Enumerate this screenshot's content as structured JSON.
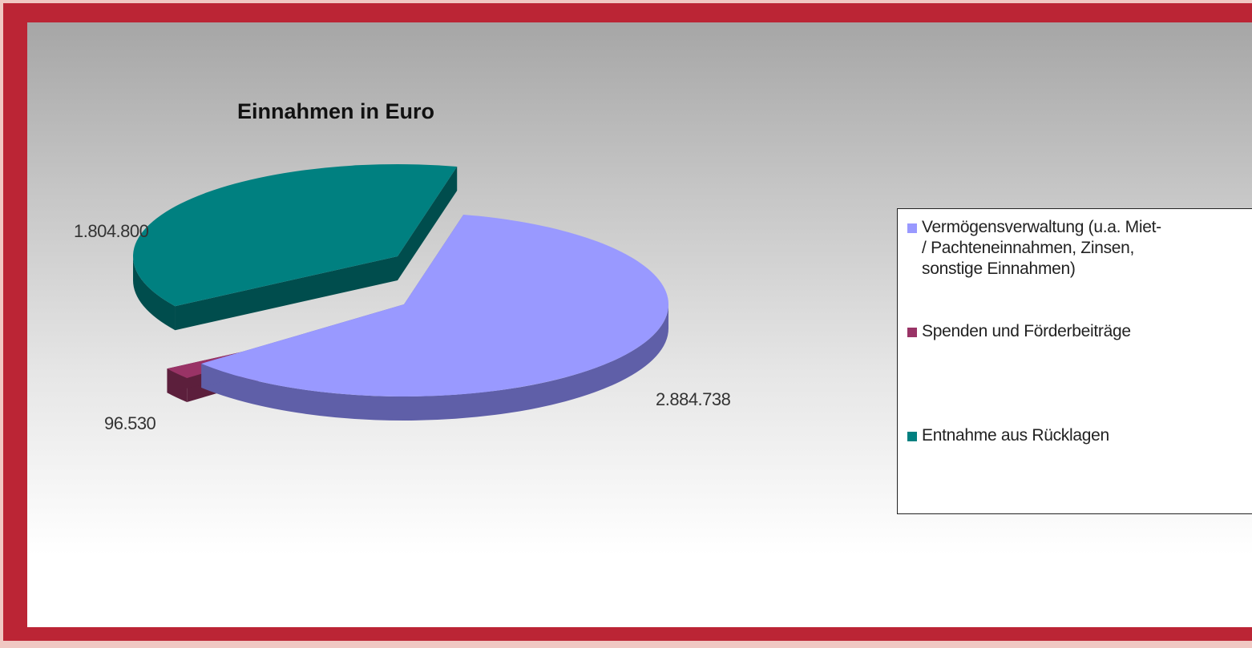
{
  "chart_data": {
    "type": "pie",
    "title": "Einnahmen in Euro",
    "slices": [
      {
        "label": "Vermögensverwaltung (u.a. Miet- / Pachteneinnahmen, Zinsen, sonstige Einnahmen)",
        "value": 2884738,
        "display": "2.884.738",
        "color": "#9999ff",
        "side_color": "#5f5fa8"
      },
      {
        "label": "Spenden und Förderbeiträge",
        "value": 96530,
        "display": "96.530",
        "color": "#993366",
        "side_color": "#5c1f3c"
      },
      {
        "label": "Entnahme aus Rücklagen",
        "value": 1804800,
        "display": "1.804.800",
        "color": "#008080",
        "side_color": "#004d4d"
      }
    ],
    "legend_position": "right",
    "three_d": true,
    "exploded": true
  },
  "frame_colors": {
    "border": "#bb2535",
    "outer": "#f0c8c3"
  }
}
